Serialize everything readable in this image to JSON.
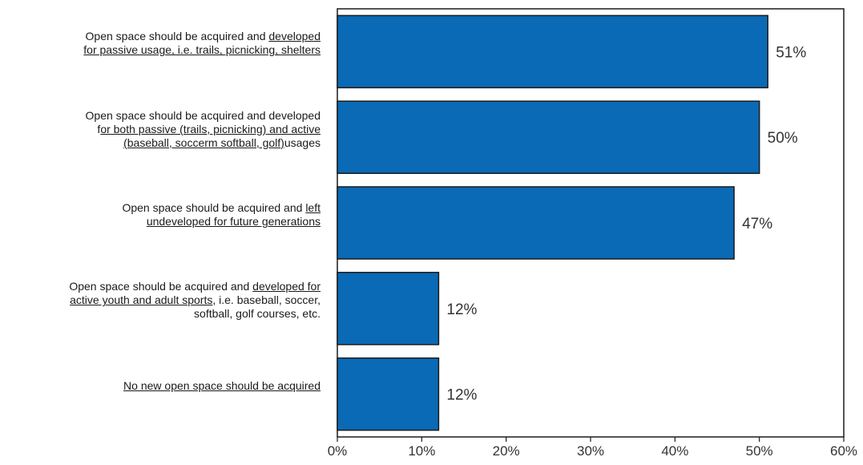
{
  "chart_data": {
    "type": "bar",
    "orientation": "horizontal",
    "categories": [
      "Open space should be acquired and developed for passive usage, i.e. trails, picnicking, shelters",
      "Open space should be acquired and developed for both passive (trails, picnicking) and active (baseball, soccerm softball, golf)usages",
      "Open space should be acquired and left undeveloped for future generations",
      "Open space should be acquired and developed for active youth and adult sports, i.e. baseball, soccer, softball, golf courses, etc.",
      "No new open space should be acquired"
    ],
    "values": [
      51,
      50,
      47,
      12,
      12
    ],
    "value_labels": [
      "51%",
      "50%",
      "47%",
      "12%",
      "12%"
    ],
    "xlim": [
      0,
      60
    ],
    "x_ticks": [
      0,
      10,
      20,
      30,
      40,
      50,
      60
    ],
    "x_tick_labels": [
      "0%",
      "10%",
      "20%",
      "30%",
      "40%",
      "50%",
      "60%"
    ],
    "title": "",
    "xlabel": "",
    "ylabel": "",
    "grid": false,
    "bar_color": "#0a6ab5",
    "bar_edge_color": "#1a1a1a",
    "label_lines": [
      [
        [
          {
            "t": "Open space should be acquired and ",
            "u": false
          },
          {
            "t": "developed ",
            "u": true
          }
        ],
        [
          {
            "t": "for passive usage, i.e. trails, picnicking, shelters",
            "u": true
          }
        ]
      ],
      [
        [
          {
            "t": "Open space should be acquired and developed",
            "u": false
          }
        ],
        [
          {
            "t": "f",
            "u": false
          },
          {
            "t": "or both passive (trails, picnicking) and active ",
            "u": true
          }
        ],
        [
          {
            "t": "(baseball, soccerm softball, golf)",
            "u": true
          },
          {
            "t": "usages",
            "u": false
          }
        ]
      ],
      [
        [
          {
            "t": "Open space should be acquired and ",
            "u": false
          },
          {
            "t": "left ",
            "u": true
          }
        ],
        [
          {
            "t": "undeveloped for future generations",
            "u": true
          }
        ]
      ],
      [
        [
          {
            "t": "Open space should be acquired and ",
            "u": false
          },
          {
            "t": "developed for ",
            "u": true
          }
        ],
        [
          {
            "t": "active youth and adult sports",
            "u": true
          },
          {
            "t": ", i.e. baseball, soccer,",
            "u": false
          }
        ],
        [
          {
            "t": "softball, golf courses, etc.",
            "u": false
          }
        ]
      ],
      [
        [
          {
            "t": "No new open space should be acquired",
            "u": true
          }
        ]
      ]
    ]
  }
}
